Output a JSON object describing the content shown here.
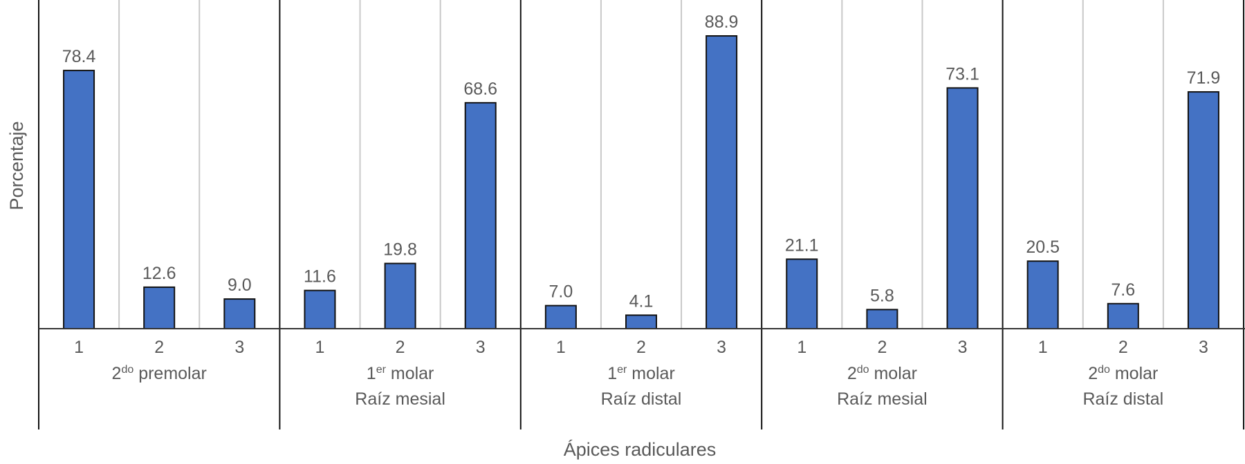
{
  "chart_data": {
    "type": "bar",
    "title": "",
    "xlabel": "Ápices radiculares",
    "ylabel": "Porcentaje",
    "ylim": [
      0,
      90
    ],
    "grid": "vertical separators between categories",
    "legend": "none",
    "bar_color": "#4472C4",
    "groups": [
      {
        "label_sup_base": "2",
        "label_sup": "do",
        "label_rest": " premolar",
        "label_line2": "",
        "categories": [
          "1",
          "2",
          "3"
        ],
        "values": [
          78.4,
          12.6,
          9.0
        ],
        "value_labels": [
          "78.4",
          "12.6",
          "9.0"
        ]
      },
      {
        "label_sup_base": "1",
        "label_sup": "er",
        "label_rest": " molar",
        "label_line2": "Raíz mesial",
        "categories": [
          "1",
          "2",
          "3"
        ],
        "values": [
          11.6,
          19.8,
          68.6
        ],
        "value_labels": [
          "11.6",
          "19.8",
          "68.6"
        ]
      },
      {
        "label_sup_base": "1",
        "label_sup": "er",
        "label_rest": " molar",
        "label_line2": "Raíz distal",
        "categories": [
          "1",
          "2",
          "3"
        ],
        "values": [
          7.0,
          4.1,
          88.9
        ],
        "value_labels": [
          "7.0",
          "4.1",
          "88.9"
        ]
      },
      {
        "label_sup_base": "2",
        "label_sup": "do",
        "label_rest": " molar",
        "label_line2": "Raíz mesial",
        "categories": [
          "1",
          "2",
          "3"
        ],
        "values": [
          21.1,
          5.8,
          73.1
        ],
        "value_labels": [
          "21.1",
          "5.8",
          "73.1"
        ]
      },
      {
        "label_sup_base": "2",
        "label_sup": "do",
        "label_rest": " molar",
        "label_line2": "Raíz distal",
        "categories": [
          "1",
          "2",
          "3"
        ],
        "values": [
          20.5,
          7.6,
          71.9
        ],
        "value_labels": [
          "20.5",
          "7.6",
          "71.9"
        ]
      }
    ]
  }
}
